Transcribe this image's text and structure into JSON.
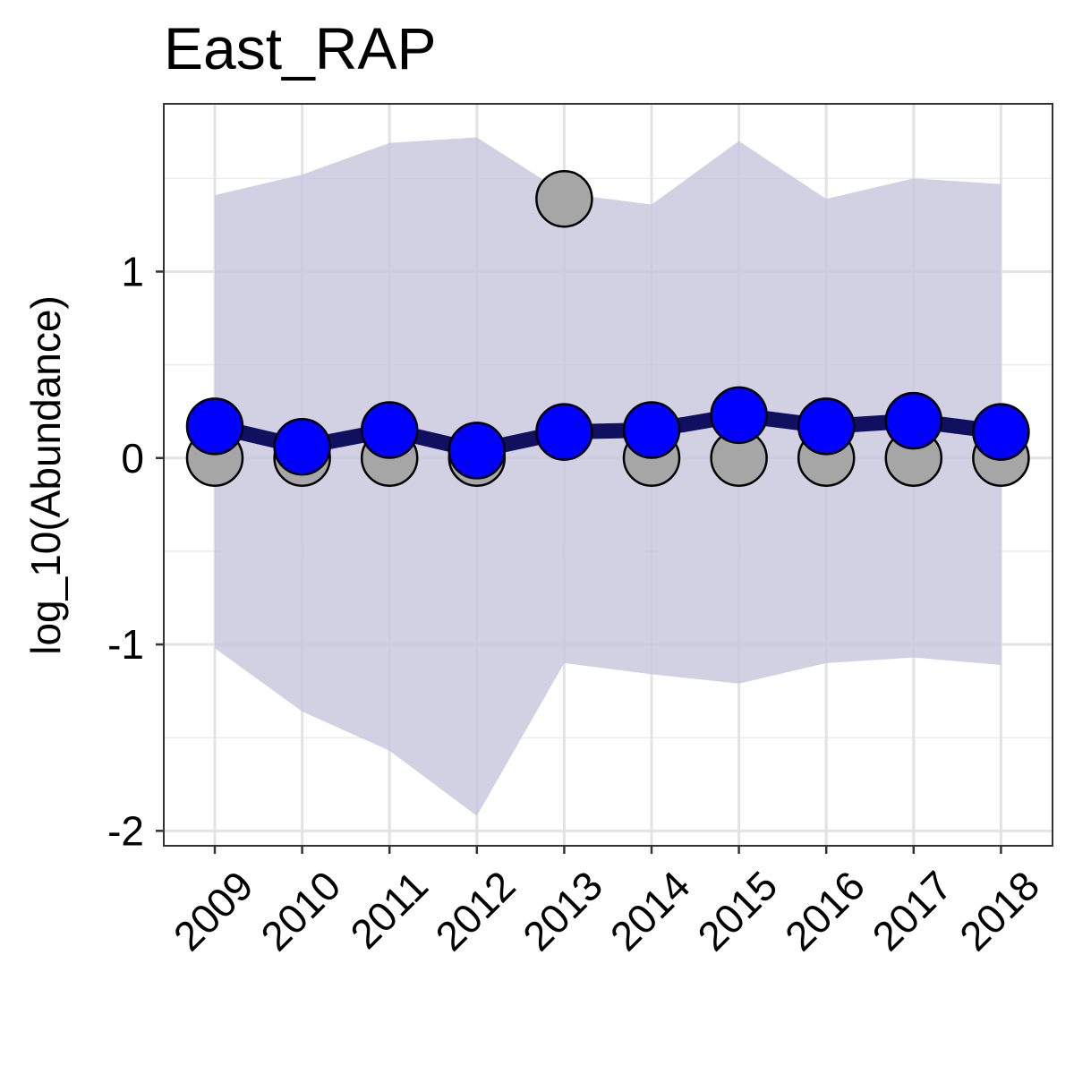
{
  "chart_data": {
    "type": "line",
    "title": "East_RAP",
    "xlabel": "",
    "ylabel": "log_10(Abundance)",
    "x": [
      "2009",
      "2010",
      "2011",
      "2012",
      "2013",
      "2014",
      "2015",
      "2016",
      "2017",
      "2018"
    ],
    "y_ticks": [
      "1",
      "0",
      "-1",
      "-2"
    ],
    "ylim": [
      -2.08,
      1.9
    ],
    "grid": true,
    "legend": "none",
    "series": [
      {
        "kind": "ribbon",
        "color": "#d0d0e2",
        "upper": [
          1.41,
          1.52,
          1.69,
          1.72,
          1.42,
          1.36,
          1.7,
          1.39,
          1.5,
          1.47
        ],
        "lower": [
          -1.02,
          -1.36,
          -1.57,
          -1.92,
          -1.1,
          -1.16,
          -1.21,
          -1.1,
          -1.07,
          -1.11
        ]
      },
      {
        "kind": "points",
        "color": "#a6a6a6",
        "values": [
          0.0,
          0.0,
          0.0,
          0.0,
          1.39,
          0.0,
          0.0,
          0.0,
          0.0,
          0.0
        ]
      },
      {
        "kind": "line-points",
        "color": "#0000ff",
        "line_color": "#111060",
        "values": [
          0.17,
          0.06,
          0.15,
          0.04,
          0.14,
          0.15,
          0.23,
          0.17,
          0.2,
          0.14
        ]
      }
    ]
  }
}
